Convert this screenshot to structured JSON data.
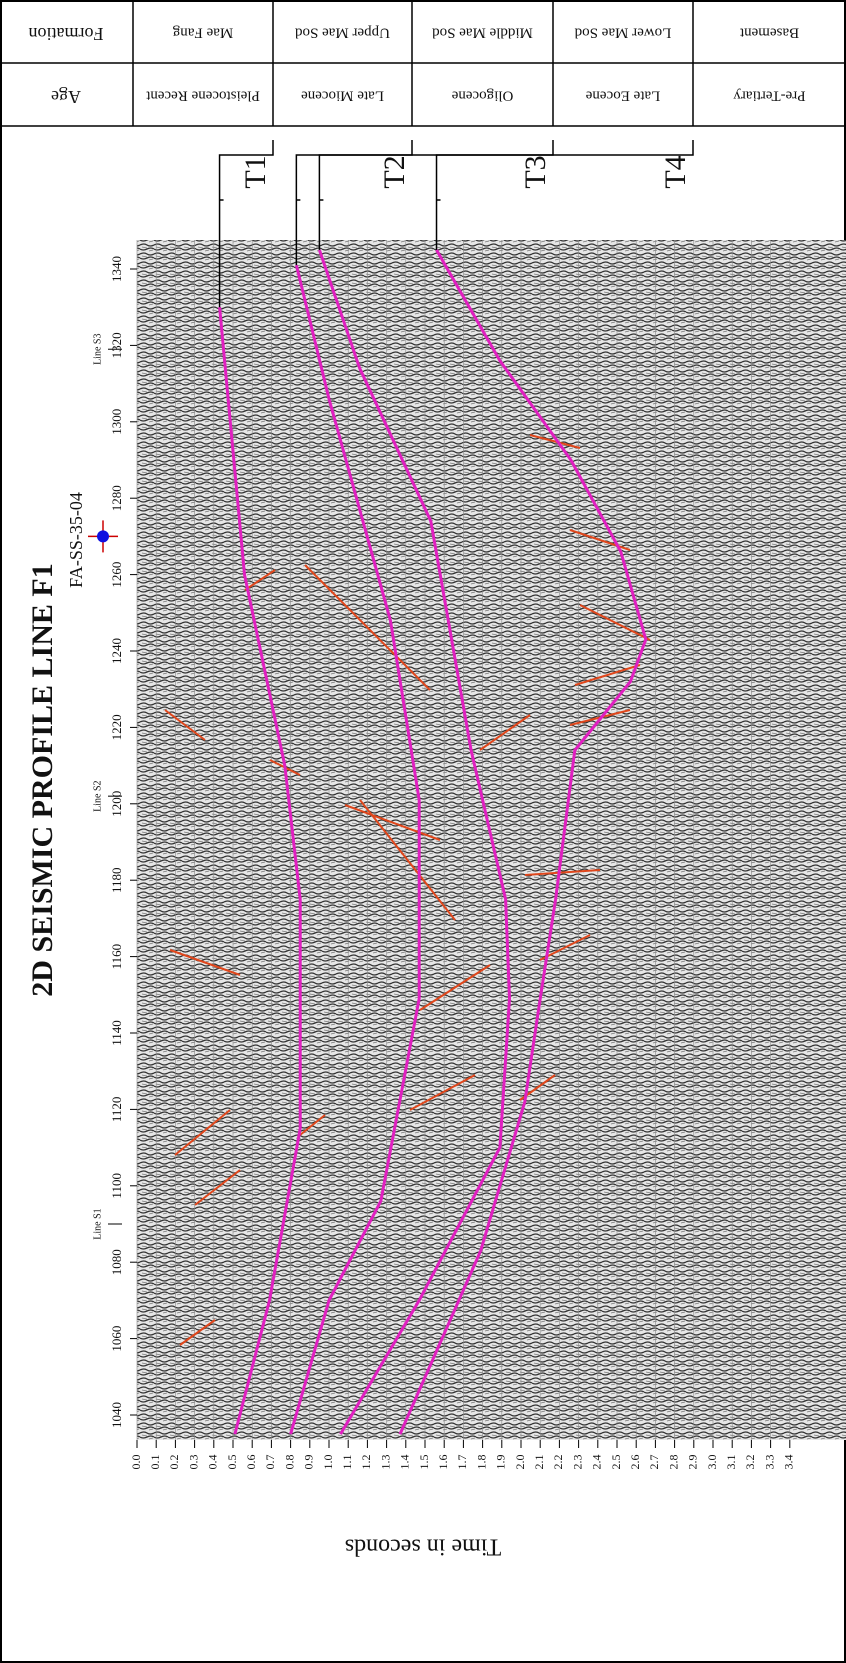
{
  "title": "2D SEISMIC PROFILE LINE F1",
  "well": {
    "label": "FA-SS-35-04",
    "cdp": 1270
  },
  "lines": [
    {
      "label": "Line S1",
      "cdp": 1090
    },
    {
      "label": "Line S2",
      "cdp": 1202
    },
    {
      "label": "Line S3",
      "cdp": 1319
    }
  ],
  "cdp_ticks": [
    1040,
    1060,
    1080,
    1100,
    1120,
    1140,
    1160,
    1180,
    1200,
    1220,
    1240,
    1260,
    1280,
    1300,
    1320,
    1340
  ],
  "time_axis": {
    "label": "Time in seconds",
    "ticks": [
      {
        "value": 0,
        "label": "0.0"
      },
      {
        "value": 0.1,
        "label": "0.1"
      },
      {
        "value": 0.2,
        "label": "0.2"
      },
      {
        "value": 0.3,
        "label": "0.3"
      },
      {
        "value": 0.4,
        "label": "0.4"
      },
      {
        "value": 0.5,
        "label": "0.5"
      },
      {
        "value": 0.6,
        "label": "0.6"
      },
      {
        "value": 0.7,
        "label": "0.7"
      },
      {
        "value": 0.8,
        "label": "0.8"
      },
      {
        "value": 0.9,
        "label": "0.9"
      },
      {
        "value": 1,
        "label": "1.0"
      },
      {
        "value": 1.1,
        "label": "1.1"
      },
      {
        "value": 1.2,
        "label": "1.2"
      },
      {
        "value": 1.3,
        "label": "1.3"
      },
      {
        "value": 1.4,
        "label": "1.4"
      },
      {
        "value": 1.5,
        "label": "1.5"
      },
      {
        "value": 1.6,
        "label": "1.6"
      },
      {
        "value": 1.7,
        "label": "1.7"
      },
      {
        "value": 1.8,
        "label": "1.8"
      },
      {
        "value": 1.9,
        "label": "1.9"
      },
      {
        "value": 2,
        "label": "2.0"
      },
      {
        "value": 2.1,
        "label": "2.1"
      },
      {
        "value": 2.2,
        "label": "2.2"
      },
      {
        "value": 2.3,
        "label": "2.3"
      },
      {
        "value": 2.4,
        "label": "2.4"
      },
      {
        "value": 2.5,
        "label": "2.5"
      },
      {
        "value": 2.6,
        "label": "2.6"
      },
      {
        "value": 2.7,
        "label": "2.7"
      },
      {
        "value": 2.8,
        "label": "2.8"
      },
      {
        "value": 2.9,
        "label": "2.9"
      },
      {
        "value": 3,
        "label": "3.0"
      },
      {
        "value": 3.1,
        "label": "3.1"
      },
      {
        "value": 3.2,
        "label": "3.2"
      },
      {
        "value": 3.3,
        "label": "3.3"
      },
      {
        "value": 3.4,
        "label": "3.4"
      }
    ]
  },
  "table": {
    "headers": [
      "Formation",
      "Age"
    ],
    "rows": [
      [
        "Mae Fang",
        "Pleistocene Recent"
      ],
      [
        "Upper Mae Sod",
        "Late Miocene"
      ],
      [
        "Middle Mae Sod",
        "Oligocene"
      ],
      [
        "Lower Mae Sod",
        "Late Eocene"
      ],
      [
        "Basement",
        "Pre-Tertiary"
      ]
    ]
  },
  "horizons": [
    {
      "label": "T1",
      "cdp": [
        1330,
        1260,
        1210,
        1175,
        1115,
        1070,
        1035
      ],
      "time": [
        0.43,
        0.56,
        0.77,
        0.85,
        0.85,
        0.69,
        0.51
      ]
    },
    {
      "label": "T2",
      "cdp": [
        1341,
        1306,
        1248,
        1201,
        1149,
        1096,
        1070,
        1035
      ],
      "time": [
        0.83,
        1.0,
        1.32,
        1.47,
        1.47,
        1.27,
        1.0,
        0.8
      ]
    },
    {
      "label": "T3",
      "cdp": [
        1345,
        1314,
        1274,
        1214,
        1175,
        1149,
        1110,
        1070,
        1035
      ],
      "time": [
        0.95,
        1.16,
        1.53,
        1.74,
        1.92,
        1.94,
        1.89,
        1.47,
        1.06
      ]
    },
    {
      "label": "T4",
      "cdp": [
        1345,
        1316,
        1290,
        1266,
        1243,
        1232,
        1214,
        1175,
        1149,
        1122,
        1083,
        1035
      ],
      "time": [
        1.56,
        1.89,
        2.26,
        2.52,
        2.65,
        2.57,
        2.28,
        2.18,
        2.1,
        2.02,
        1.79,
        1.37
      ]
    }
  ]
}
